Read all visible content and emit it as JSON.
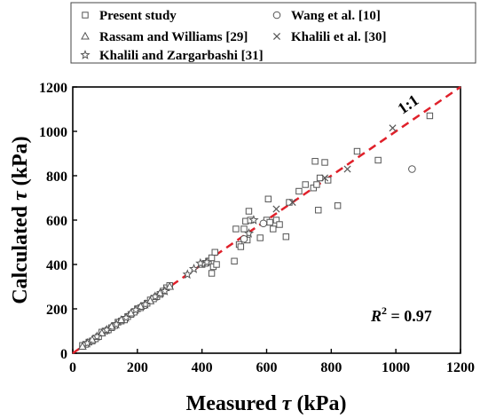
{
  "chart_data": {
    "type": "scatter",
    "title": "",
    "xlabel": "Measured τ (kPa)",
    "ylabel": "Calculated τ (kPa)",
    "xlabel_parts": {
      "pre": "Measured ",
      "sym": "τ",
      "post": " (kPa)"
    },
    "ylabel_parts": {
      "pre": "Calculated ",
      "sym": "τ",
      "post": " (kPa)"
    },
    "xlim": [
      0,
      1200
    ],
    "ylim": [
      0,
      1200
    ],
    "xticks": [
      "0",
      "200",
      "400",
      "600",
      "800",
      "1000",
      "1200"
    ],
    "yticks": [
      "0",
      "200",
      "400",
      "600",
      "800",
      "1000",
      "1200"
    ],
    "grid": false,
    "legend_position": "top",
    "reference_line": {
      "label": "1:1",
      "color": "#e0202a",
      "points": [
        [
          0,
          0
        ],
        [
          1200,
          1200
        ]
      ]
    },
    "annotation": {
      "var": "R",
      "sup": "2",
      "rest": " = 0.97"
    },
    "series": [
      {
        "name": "Present study",
        "marker": "square",
        "color": "#555555",
        "points": [
          [
            30,
            35
          ],
          [
            40,
            40
          ],
          [
            50,
            50
          ],
          [
            60,
            55
          ],
          [
            70,
            65
          ],
          [
            80,
            75
          ],
          [
            90,
            95
          ],
          [
            100,
            100
          ],
          [
            110,
            105
          ],
          [
            120,
            115
          ],
          [
            130,
            125
          ],
          [
            140,
            140
          ],
          [
            150,
            145
          ],
          [
            160,
            150
          ],
          [
            170,
            165
          ],
          [
            180,
            175
          ],
          [
            190,
            185
          ],
          [
            200,
            200
          ],
          [
            210,
            205
          ],
          [
            220,
            215
          ],
          [
            230,
            225
          ],
          [
            240,
            240
          ],
          [
            250,
            245
          ],
          [
            260,
            255
          ],
          [
            270,
            265
          ],
          [
            280,
            280
          ],
          [
            290,
            295
          ],
          [
            300,
            305
          ],
          [
            400,
            400
          ],
          [
            410,
            405
          ],
          [
            420,
            415
          ],
          [
            430,
            430
          ],
          [
            440,
            455
          ],
          [
            435,
            390
          ],
          [
            430,
            360
          ],
          [
            445,
            400
          ],
          [
            500,
            415
          ],
          [
            505,
            560
          ],
          [
            515,
            490
          ],
          [
            520,
            480
          ],
          [
            530,
            560
          ],
          [
            535,
            595
          ],
          [
            545,
            640
          ],
          [
            540,
            510
          ],
          [
            550,
            600
          ],
          [
            580,
            520
          ],
          [
            600,
            600
          ],
          [
            605,
            695
          ],
          [
            610,
            590
          ],
          [
            620,
            560
          ],
          [
            630,
            600
          ],
          [
            640,
            580
          ],
          [
            660,
            525
          ],
          [
            670,
            680
          ],
          [
            700,
            730
          ],
          [
            720,
            760
          ],
          [
            745,
            745
          ],
          [
            750,
            865
          ],
          [
            755,
            760
          ],
          [
            760,
            645
          ],
          [
            765,
            790
          ],
          [
            780,
            860
          ],
          [
            790,
            780
          ],
          [
            820,
            665
          ],
          [
            880,
            910
          ],
          [
            945,
            870
          ],
          [
            1105,
            1070
          ]
        ]
      },
      {
        "name": "Rassam and Williams [29]",
        "marker": "triangle",
        "color": "#555555",
        "points": [
          [
            30,
            30
          ],
          [
            60,
            60
          ],
          [
            90,
            90
          ],
          [
            120,
            120
          ],
          [
            150,
            150
          ],
          [
            180,
            180
          ],
          [
            210,
            210
          ],
          [
            240,
            235
          ],
          [
            270,
            270
          ],
          [
            300,
            300
          ]
        ]
      },
      {
        "name": "Khalili and Zargarbashi [31]",
        "marker": "star",
        "color": "#555555",
        "points": [
          [
            45,
            45
          ],
          [
            75,
            75
          ],
          [
            105,
            105
          ],
          [
            135,
            130
          ],
          [
            165,
            160
          ],
          [
            195,
            195
          ],
          [
            225,
            220
          ],
          [
            255,
            255
          ],
          [
            285,
            280
          ],
          [
            355,
            355
          ],
          [
            375,
            380
          ],
          [
            395,
            405
          ],
          [
            415,
            410
          ],
          [
            545,
            540
          ],
          [
            560,
            600
          ]
        ]
      },
      {
        "name": "Wang et al. [10]",
        "marker": "circle",
        "color": "#555555",
        "points": [
          [
            530,
            515
          ],
          [
            590,
            585
          ],
          [
            1050,
            830
          ]
        ]
      },
      {
        "name": "Khalili et al. [30]",
        "marker": "x",
        "color": "#555555",
        "points": [
          [
            630,
            650
          ],
          [
            680,
            680
          ],
          [
            780,
            790
          ],
          [
            850,
            830
          ],
          [
            990,
            1015
          ]
        ]
      }
    ]
  }
}
